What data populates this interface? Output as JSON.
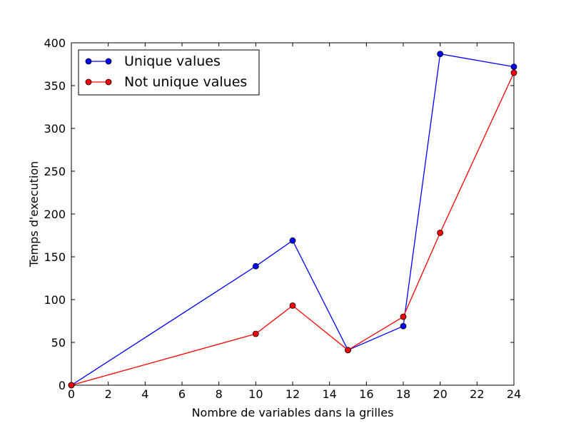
{
  "chart_data": {
    "type": "line",
    "xlabel": "Nombre de variables dans la grilles",
    "ylabel": "Temps d'execution",
    "xlim": [
      0,
      24
    ],
    "ylim": [
      0,
      400
    ],
    "xticks": [
      0,
      2,
      4,
      6,
      8,
      10,
      12,
      14,
      16,
      18,
      20,
      22,
      24
    ],
    "yticks": [
      0,
      50,
      100,
      150,
      200,
      250,
      300,
      350,
      400
    ],
    "grid": false,
    "legend_position": "top-left",
    "series": [
      {
        "name": "Unique values",
        "color": "#0000ff",
        "x": [
          0,
          10,
          12,
          15,
          18,
          20,
          24
        ],
        "y": [
          0,
          139,
          169,
          41,
          69,
          387,
          372
        ]
      },
      {
        "name": "Not unique values",
        "color": "#ff0000",
        "x": [
          0,
          10,
          12,
          15,
          18,
          20,
          24
        ],
        "y": [
          0,
          60,
          93,
          41,
          80,
          178,
          365
        ]
      }
    ]
  }
}
